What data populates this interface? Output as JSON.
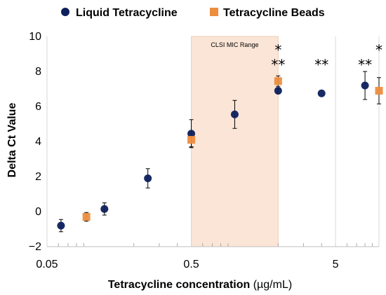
{
  "chart_data": {
    "type": "scatter",
    "xlabel_main": "Tetracycline concentration",
    "xlabel_unit": "(µg/mL)",
    "ylabel": "Delta Ct Value",
    "x_scale": "log10",
    "xlim": [
      0.05,
      10
    ],
    "ylim": [
      -2,
      10
    ],
    "y_ticks": [
      -2,
      0,
      2,
      4,
      6,
      8,
      10
    ],
    "y_tick_labels": [
      "−2",
      "0",
      "2",
      "4",
      "6",
      "8",
      "10"
    ],
    "x_ticks": [
      0.05,
      0.5,
      5
    ],
    "x_tick_labels": [
      "0.05",
      "0.5",
      "5"
    ],
    "grid": "major vertical lines at 0.05, 0.5, 5 with minor log ticks",
    "legend_position": "top",
    "shaded_region": {
      "label": "CLSI MIC Range",
      "x_start": 0.5,
      "x_end": 2,
      "color": "#fbe5d6"
    },
    "series": [
      {
        "name": "Liquid Tetracycline",
        "marker": "circle",
        "color": "#0d1f5c",
        "points": [
          {
            "x": 0.0625,
            "y": -0.8,
            "err": 0.35
          },
          {
            "x": 0.125,
            "y": 0.15,
            "err": 0.35
          },
          {
            "x": 0.25,
            "y": 1.9,
            "err": 0.55
          },
          {
            "x": 0.5,
            "y": 4.45,
            "err": 0.8
          },
          {
            "x": 1,
            "y": 5.55,
            "err": 0.8
          },
          {
            "x": 2,
            "y": 6.9,
            "err": 0.15
          },
          {
            "x": 4,
            "y": 6.75,
            "err": 0
          },
          {
            "x": 8,
            "y": 7.2,
            "err": 0.8
          }
        ]
      },
      {
        "name": "Tetracycline Beads",
        "marker": "square",
        "color": "#ed8d3f",
        "points": [
          {
            "x": 0.09375,
            "y": -0.3,
            "err": 0.25
          },
          {
            "x": 0.5,
            "y": 4.1,
            "err": 0.4
          },
          {
            "x": 2,
            "y": 7.45,
            "err": 0.3
          },
          {
            "x": 10,
            "y": 6.9,
            "err": 0.75
          }
        ]
      }
    ],
    "annotations": [
      {
        "text": "*",
        "x": 2,
        "y": 8.95
      },
      {
        "text": "**",
        "x": 2,
        "y": 8.1
      },
      {
        "text": "**",
        "x": 4,
        "y": 8.1
      },
      {
        "text": "**",
        "x": 8,
        "y": 8.1
      },
      {
        "text": "*",
        "x": 10,
        "y": 8.95
      }
    ]
  }
}
